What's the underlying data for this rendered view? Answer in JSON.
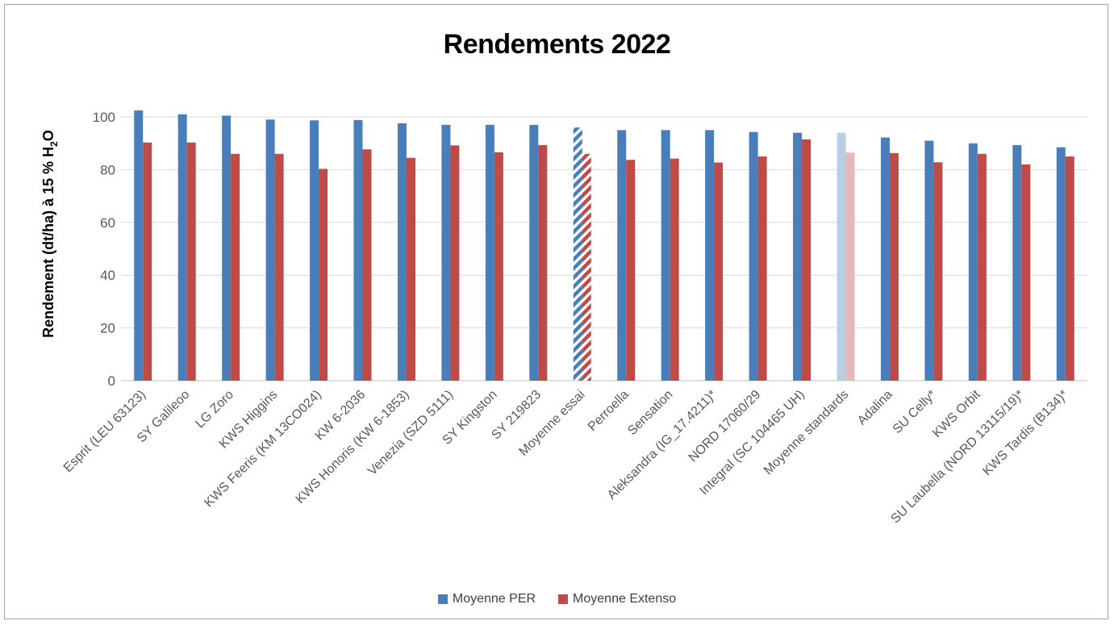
{
  "chart_data": {
    "type": "bar",
    "title": "Rendements 2022",
    "ylabel": "Rendement (dt/ha) à 15 % H",
    "ylabel_sub": "2",
    "ylabel_suffix": "O",
    "xlabel": "",
    "ylim": [
      0,
      100
    ],
    "yticks": [
      0,
      20,
      40,
      60,
      80,
      100
    ],
    "grid": true,
    "legend_position": "bottom",
    "categories": [
      "Esprit (LEU 63123)",
      "SY Galileoo",
      "LG Zoro",
      "KWS Higgins",
      "KWS Feeris (KM 13CO024)",
      "KW 6-2036",
      "KWS Honoris (KW 6-1853)",
      "Venezia (SZD 5111)",
      "SY Kingston",
      "SY 219823",
      "Moyenne essai",
      "Perroella",
      "Sensation",
      "Aleksandra (IG_17.4211)*",
      "NORD 17060/29",
      "Integral (SC 104465 UH)",
      "Moyenne standards",
      "Adalina",
      "SU Celly*",
      "KWS Orbit",
      "SU Laubella (NORD 13115/19)*",
      "KWS Tardis (B134)*"
    ],
    "series": [
      {
        "name": "Moyenne PER",
        "color": "#4a7ebb",
        "values": [
          102.5,
          101,
          100.5,
          99,
          98.7,
          98.8,
          97.6,
          97,
          97,
          97,
          96,
          95,
          95,
          95,
          94.3,
          94,
          94,
          92.2,
          91,
          90,
          89.3,
          88.5
        ]
      },
      {
        "name": "Moyenne Extenso",
        "color": "#be4b48",
        "values": [
          90.3,
          90.3,
          86,
          86,
          80.3,
          87.7,
          84.5,
          89.2,
          86.6,
          89.3,
          86,
          83.7,
          84.2,
          82.7,
          85,
          91.5,
          86.5,
          86.3,
          82.8,
          86,
          82,
          85
        ]
      }
    ],
    "special_styles": {
      "Moyenne essai": "hatched",
      "Moyenne standards": "light"
    }
  }
}
